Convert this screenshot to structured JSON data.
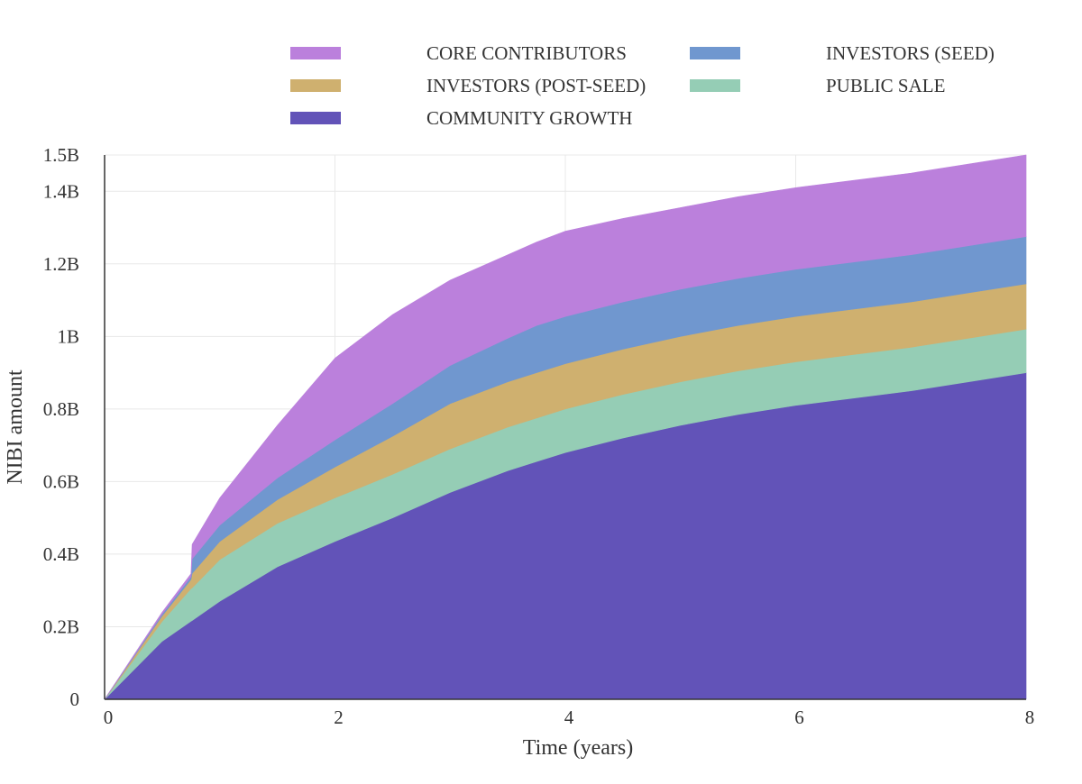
{
  "chart_data": {
    "type": "area",
    "stacked": true,
    "title": "",
    "xlabel": "Time (years)",
    "ylabel": "NIBI amount",
    "xlim": [
      0,
      8
    ],
    "ylim": [
      0,
      1.5
    ],
    "x_ticks": [
      {
        "value": 0,
        "label": "0"
      },
      {
        "value": 2,
        "label": "2"
      },
      {
        "value": 4,
        "label": "4"
      },
      {
        "value": 6,
        "label": "6"
      },
      {
        "value": 8,
        "label": "8"
      }
    ],
    "y_ticks": [
      {
        "value": 0,
        "label": "0"
      },
      {
        "value": 0.2,
        "label": "0.2B"
      },
      {
        "value": 0.4,
        "label": "0.4B"
      },
      {
        "value": 0.6,
        "label": "0.6B"
      },
      {
        "value": 0.8,
        "label": "0.8B"
      },
      {
        "value": 1.0,
        "label": "1B"
      },
      {
        "value": 1.2,
        "label": "1.2B"
      },
      {
        "value": 1.4,
        "label": "1.4B"
      },
      {
        "value": 1.5,
        "label": "1.5B"
      }
    ],
    "grid": true,
    "legend_position": "top",
    "units": "billions NIBI",
    "x": [
      0,
      0.5,
      0.75,
      0.76,
      1,
      1.5,
      2,
      2.5,
      3,
      3.5,
      3.75,
      4,
      4.5,
      5,
      5.5,
      6,
      6.5,
      7,
      7.5,
      8
    ],
    "series": [
      {
        "name": "COMMUNITY GROWTH",
        "color": "#6253b8",
        "values": [
          0,
          0.16,
          0.215,
          0.217,
          0.27,
          0.365,
          0.435,
          0.5,
          0.57,
          0.63,
          0.655,
          0.68,
          0.72,
          0.755,
          0.785,
          0.81,
          0.83,
          0.85,
          0.875,
          0.9
        ]
      },
      {
        "name": "PUBLIC SALE",
        "color": "#95cdb5",
        "values": [
          0,
          0.055,
          0.09,
          0.09,
          0.115,
          0.12,
          0.12,
          0.12,
          0.12,
          0.12,
          0.12,
          0.12,
          0.12,
          0.12,
          0.12,
          0.12,
          0.12,
          0.12,
          0.12,
          0.12
        ]
      },
      {
        "name": "INVESTORS (POST-SEED)",
        "color": "#cfb06f",
        "values": [
          0,
          0.015,
          0.025,
          0.04,
          0.05,
          0.065,
          0.085,
          0.105,
          0.125,
          0.125,
          0.125,
          0.125,
          0.125,
          0.125,
          0.125,
          0.125,
          0.125,
          0.125,
          0.125,
          0.125
        ]
      },
      {
        "name": "INVESTORS (SEED)",
        "color": "#7097cf",
        "values": [
          0,
          0.005,
          0.008,
          0.04,
          0.045,
          0.06,
          0.075,
          0.09,
          0.105,
          0.12,
          0.13,
          0.13,
          0.13,
          0.13,
          0.13,
          0.13,
          0.13,
          0.13,
          0.13,
          0.13
        ]
      },
      {
        "name": "CORE CONTRIBUTORS",
        "color": "#bb80dc",
        "values": [
          0,
          0.005,
          0.008,
          0.04,
          0.075,
          0.145,
          0.225,
          0.245,
          0.235,
          0.23,
          0.23,
          0.235,
          0.23,
          0.225,
          0.225,
          0.225,
          0.225,
          0.225,
          0.225,
          0.225
        ]
      }
    ],
    "legend": [
      {
        "name": "CORE CONTRIBUTORS",
        "color": "#bb80dc"
      },
      {
        "name": "INVESTORS (SEED)",
        "color": "#7097cf"
      },
      {
        "name": "INVESTORS (POST-SEED)",
        "color": "#cfb06f"
      },
      {
        "name": "PUBLIC SALE",
        "color": "#95cdb5"
      },
      {
        "name": "COMMUNITY GROWTH",
        "color": "#6253b8"
      }
    ]
  }
}
